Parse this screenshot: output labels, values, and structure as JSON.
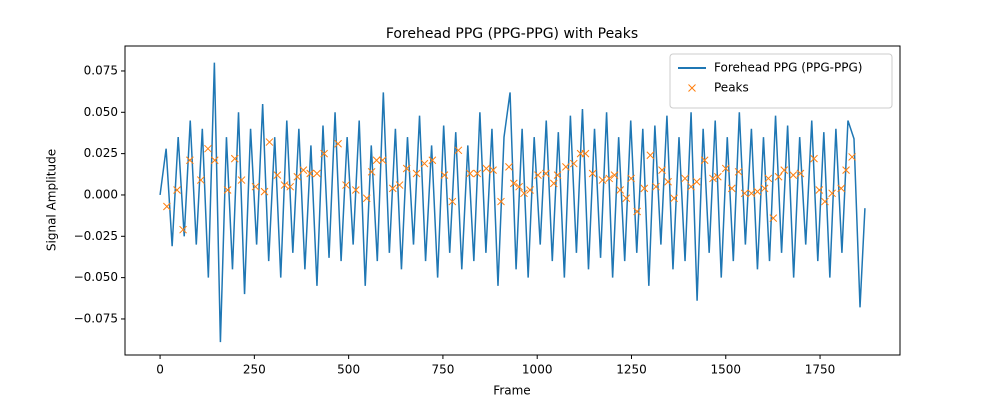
{
  "chart_data": {
    "type": "line",
    "title": "Forehead PPG (PPG-PPG) with Peaks",
    "xlabel": "Frame",
    "ylabel": "Signal Amplitude",
    "xlim": [
      -93,
      1962
    ],
    "ylim": [
      -0.0968,
      0.0901
    ],
    "xticks": [
      0,
      250,
      500,
      750,
      1000,
      1250,
      1500,
      1750
    ],
    "yticks": [
      {
        "value": -0.075,
        "label": "−0.075"
      },
      {
        "value": -0.05,
        "label": "−0.050"
      },
      {
        "value": -0.025,
        "label": "−0.025"
      },
      {
        "value": 0,
        "label": "0.000"
      },
      {
        "value": 0.025,
        "label": "0.025"
      },
      {
        "value": 0.05,
        "label": "0.050"
      },
      {
        "value": 0.075,
        "label": "0.075"
      }
    ],
    "legend": "upper right",
    "series": [
      {
        "name": "Forehead PPG (PPG-PPG)",
        "color": "#1f77b4",
        "mode": "line",
        "x": [
          0,
          16,
          32,
          48,
          64,
          80,
          96,
          112,
          128,
          144,
          160,
          176,
          192,
          208,
          224,
          240,
          256,
          272,
          288,
          304,
          320,
          336,
          352,
          368,
          384,
          400,
          416,
          432,
          448,
          464,
          480,
          496,
          512,
          528,
          544,
          560,
          576,
          592,
          608,
          624,
          640,
          656,
          672,
          688,
          704,
          720,
          736,
          752,
          768,
          784,
          800,
          816,
          832,
          848,
          864,
          880,
          896,
          912,
          928,
          944,
          960,
          976,
          992,
          1008,
          1024,
          1040,
          1056,
          1072,
          1088,
          1104,
          1120,
          1136,
          1152,
          1168,
          1184,
          1200,
          1216,
          1232,
          1248,
          1264,
          1280,
          1296,
          1312,
          1328,
          1344,
          1360,
          1376,
          1392,
          1408,
          1424,
          1440,
          1456,
          1472,
          1488,
          1504,
          1520,
          1536,
          1552,
          1568,
          1584,
          1600,
          1616,
          1632,
          1648,
          1664,
          1680,
          1696,
          1712,
          1728,
          1744,
          1760,
          1776,
          1792,
          1808,
          1824,
          1840,
          1856,
          1869
        ],
        "values": [
          0.0,
          0.028,
          -0.031,
          0.035,
          -0.025,
          0.045,
          -0.03,
          0.04,
          -0.05,
          0.08,
          -0.089,
          0.035,
          -0.045,
          0.05,
          -0.06,
          0.04,
          -0.03,
          0.055,
          -0.04,
          0.035,
          -0.05,
          0.045,
          -0.035,
          0.04,
          -0.045,
          0.03,
          -0.055,
          0.042,
          -0.038,
          0.05,
          -0.04,
          0.035,
          -0.03,
          0.045,
          -0.055,
          0.03,
          -0.04,
          0.062,
          -0.035,
          0.04,
          -0.045,
          0.035,
          -0.03,
          0.048,
          -0.04,
          0.03,
          -0.05,
          0.042,
          -0.035,
          0.038,
          -0.045,
          0.03,
          -0.04,
          0.05,
          -0.035,
          0.04,
          -0.055,
          0.035,
          0.062,
          -0.045,
          0.04,
          -0.05,
          0.035,
          -0.03,
          0.045,
          -0.04,
          0.038,
          -0.05,
          0.048,
          -0.035,
          0.052,
          -0.045,
          0.04,
          -0.038,
          0.05,
          -0.05,
          0.035,
          -0.04,
          0.045,
          -0.035,
          0.04,
          -0.055,
          0.042,
          -0.03,
          0.048,
          -0.045,
          0.035,
          -0.04,
          0.05,
          -0.064,
          0.04,
          -0.035,
          0.045,
          -0.05,
          0.035,
          -0.04,
          0.05,
          -0.03,
          0.04,
          -0.045,
          0.035,
          -0.04,
          0.048,
          -0.035,
          0.042,
          -0.05,
          0.035,
          -0.03,
          0.045,
          -0.04,
          0.038,
          -0.05,
          0.04,
          -0.035,
          0.045,
          0.034,
          -0.068,
          -0.008
        ]
      },
      {
        "name": "Peaks",
        "color": "#ff7f0e",
        "mode": "markers",
        "x": [
          18,
          45,
          61,
          79,
          108,
          127,
          145,
          179,
          198,
          216,
          253,
          277,
          290,
          311,
          330,
          345,
          364,
          380,
          398,
          416,
          435,
          472,
          493,
          519,
          548,
          561,
          574,
          590,
          617,
          635,
          654,
          680,
          701,
          722,
          754,
          775,
          791,
          822,
          841,
          865,
          883,
          904,
          925,
          938,
          952,
          965,
          981,
          1002,
          1023,
          1044,
          1054,
          1076,
          1097,
          1115,
          1128,
          1147,
          1173,
          1191,
          1205,
          1220,
          1236,
          1249,
          1265,
          1284,
          1300,
          1315,
          1331,
          1347,
          1363,
          1392,
          1408,
          1423,
          1444,
          1466,
          1479,
          1500,
          1516,
          1534,
          1550,
          1568,
          1584,
          1603,
          1613,
          1626,
          1640,
          1655,
          1679,
          1698,
          1734,
          1748,
          1763,
          1782,
          1806,
          1819,
          1835
        ],
        "values": [
          -0.007,
          0.003,
          -0.021,
          0.021,
          0.009,
          0.028,
          0.021,
          0.003,
          0.022,
          0.009,
          0.005,
          0.002,
          0.032,
          0.012,
          0.006,
          0.005,
          0.011,
          0.015,
          0.013,
          0.013,
          0.025,
          0.031,
          0.006,
          0.003,
          -0.002,
          0.014,
          0.021,
          0.021,
          0.004,
          0.006,
          0.016,
          0.013,
          0.019,
          0.021,
          0.012,
          -0.004,
          0.027,
          0.013,
          0.013,
          0.016,
          0.015,
          -0.004,
          0.017,
          0.007,
          0.005,
          0.001,
          0.003,
          0.012,
          0.013,
          0.007,
          0.012,
          0.017,
          0.019,
          0.025,
          0.025,
          0.013,
          0.009,
          0.01,
          0.012,
          0.003,
          -0.002,
          0.01,
          -0.01,
          0.004,
          0.024,
          0.005,
          0.015,
          0.008,
          -0.002,
          0.01,
          0.005,
          0.008,
          0.021,
          0.01,
          0.011,
          0.016,
          0.004,
          0.014,
          0.001,
          0.001,
          0.002,
          0.004,
          0.01,
          -0.014,
          0.011,
          0.015,
          0.012,
          0.013,
          0.022,
          0.003,
          -0.004,
          0.001,
          0.004,
          0.015,
          0.023
        ]
      }
    ]
  }
}
